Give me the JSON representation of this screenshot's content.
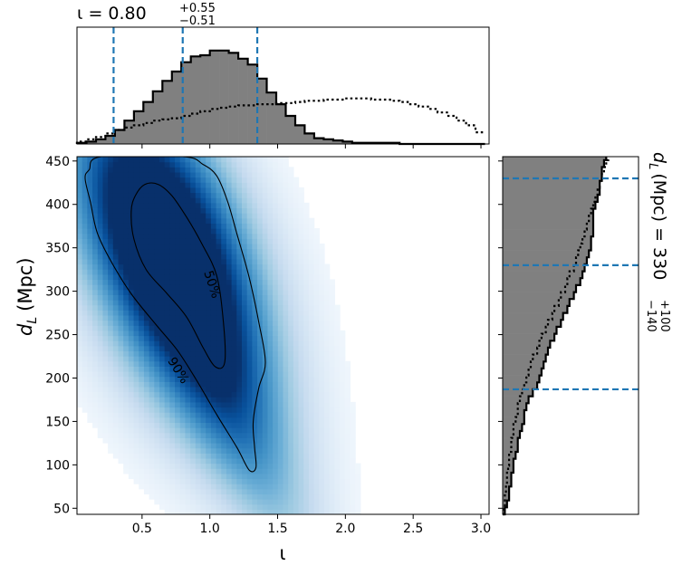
{
  "chart_data": [
    {
      "panel": "joint",
      "type": "heatmap",
      "xlabel": "ι",
      "ylabel_main": "d",
      "ylabel_sub": "L",
      "ylabel_unit": "(Mpc)",
      "xlim": [
        0.02,
        3.06
      ],
      "ylim": [
        43,
        455
      ],
      "xticks": [
        "0.5",
        "1.0",
        "1.5",
        "2.0",
        "2.5",
        "3.0"
      ],
      "yticks": [
        "50",
        "100",
        "150",
        "200",
        "250",
        "300",
        "350",
        "400",
        "450"
      ],
      "colormap": "Blues",
      "density_peak": {
        "x": 0.72,
        "y": 330
      },
      "contours": [
        {
          "label": "50%",
          "points": [
            [
              0.45,
              410
            ],
            [
              0.52,
              423
            ],
            [
              0.62,
              423
            ],
            [
              0.72,
              410
            ],
            [
              0.83,
              385
            ],
            [
              0.94,
              355
            ],
            [
              1.05,
              318
            ],
            [
              1.1,
              265
            ],
            [
              1.11,
              218
            ],
            [
              1.04,
              213
            ],
            [
              0.95,
              235
            ],
            [
              0.83,
              270
            ],
            [
              0.68,
              298
            ],
            [
              0.53,
              325
            ],
            [
              0.44,
              360
            ],
            [
              0.42,
              392
            ]
          ]
        },
        {
          "label": "90%",
          "points": [
            [
              0.11,
              440
            ],
            [
              0.2,
              455
            ],
            [
              0.8,
              455
            ],
            [
              0.95,
              446
            ],
            [
              1.05,
              433
            ],
            [
              1.13,
              404
            ],
            [
              1.2,
              366
            ],
            [
              1.29,
              316
            ],
            [
              1.36,
              265
            ],
            [
              1.41,
              218
            ],
            [
              1.36,
              188
            ],
            [
              1.32,
              150
            ],
            [
              1.33,
              120
            ],
            [
              1.34,
              97
            ],
            [
              1.29,
              94
            ],
            [
              1.2,
              120
            ],
            [
              1.05,
              158
            ],
            [
              0.9,
              198
            ],
            [
              0.76,
              232
            ],
            [
              0.6,
              262
            ],
            [
              0.42,
              297
            ],
            [
              0.28,
              332
            ],
            [
              0.17,
              367
            ],
            [
              0.12,
              402
            ],
            [
              0.08,
              430
            ]
          ]
        }
      ]
    },
    {
      "panel": "top_marginal",
      "type": "histogram",
      "title_base": "ι = 0.80",
      "title_sup": "+0.55",
      "title_sub": "−0.51",
      "x_edges_start": 0.02,
      "bin_width": 0.07,
      "posterior_counts": [
        1,
        2,
        4,
        7,
        12,
        20,
        28,
        36,
        45,
        54,
        62,
        70,
        75,
        76,
        80,
        80,
        78,
        73,
        68,
        56,
        44,
        34,
        24,
        16,
        9,
        5,
        4,
        3,
        2,
        1,
        1,
        1,
        1,
        1,
        0,
        0,
        0,
        0,
        0,
        0,
        0,
        0,
        0
      ],
      "prior_counts": [
        2,
        4,
        6,
        9,
        12,
        14,
        16,
        18,
        20,
        21,
        22,
        24,
        26,
        28,
        30,
        31,
        32,
        33,
        33,
        34,
        34,
        35,
        35,
        36,
        37,
        37,
        38,
        38,
        39,
        39,
        39,
        38,
        38,
        37,
        36,
        34,
        32,
        30,
        27,
        24,
        20,
        16,
        10
      ],
      "ymax": 100,
      "quantile_lines": [
        0.29,
        0.8,
        1.35
      ]
    },
    {
      "panel": "right_marginal",
      "type": "histogram",
      "orientation": "horizontal",
      "ylabel_main": "d",
      "ylabel_sub": "L",
      "ylabel_rest": "(Mpc) = 330",
      "ylabel_sup": "+100",
      "ylabel_subscript": "−140",
      "y_edges_start": 43,
      "bin_width": 8,
      "posterior_counts": [
        1,
        2,
        3,
        3,
        4,
        4,
        5,
        5,
        6,
        7,
        7,
        8,
        9,
        10,
        10,
        11,
        12,
        14,
        16,
        17,
        18,
        19,
        20,
        21,
        22,
        24,
        25,
        27,
        28,
        30,
        31,
        33,
        34,
        36,
        37,
        38,
        39,
        40,
        41,
        41,
        42,
        42,
        42,
        42,
        43,
        44,
        45,
        45,
        46,
        46,
        47,
        48,
        48,
        46,
        44,
        42,
        40,
        39,
        38,
        37,
        36,
        34,
        33,
        31,
        30,
        28,
        26,
        24,
        22,
        20,
        17,
        14
      ],
      "prior_counts": [
        0.5,
        1,
        1,
        1.5,
        2,
        2,
        2.5,
        3,
        3,
        4,
        4,
        5,
        5,
        6,
        7,
        7,
        8,
        9,
        10,
        11,
        12,
        13,
        14,
        16,
        17,
        18,
        20,
        21,
        23,
        24,
        26,
        27,
        29,
        30,
        31,
        33,
        34,
        35,
        36,
        37,
        38,
        39,
        40,
        41,
        42,
        43,
        44,
        45,
        46,
        47,
        48,
        49,
        50,
        51,
        52,
        53,
        54,
        55,
        55,
        56,
        56,
        57,
        57,
        58,
        58,
        59,
        59,
        60,
        60,
        60,
        61,
        61
      ],
      "xmax": 63,
      "quantile_lines": [
        187,
        330,
        430
      ]
    }
  ]
}
